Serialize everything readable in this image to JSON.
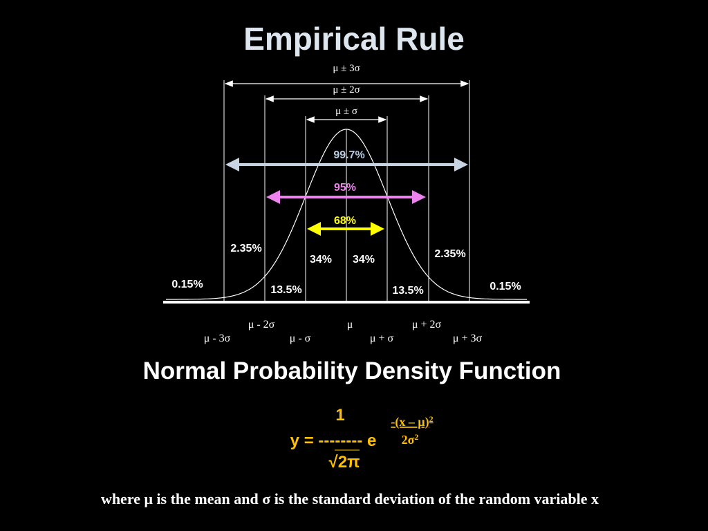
{
  "title": "Empirical Rule",
  "diagram": {
    "brackets": [
      "μ ± 3σ",
      "μ ± 2σ",
      "μ ± σ"
    ],
    "coverage": [
      "99.7%",
      "95%",
      "68%"
    ],
    "areas": [
      "0.15%",
      "2.35%",
      "13.5%",
      "34%",
      "34%",
      "13.5%",
      "2.35%",
      "0.15%"
    ],
    "axis_labels": [
      "μ - 3σ",
      "μ - 2σ",
      "μ - σ",
      "μ",
      "μ + σ",
      "μ + 2σ",
      "μ + 3σ"
    ]
  },
  "subtitle": "Normal Probability Density Function",
  "formula": {
    "numerator": "1",
    "lhs": "y = -------- e",
    "denominator": "√2π",
    "exp_numerator": "-(x – μ)",
    "exp_numerator_power": "2",
    "exp_denominator": "2σ",
    "exp_denominator_power": "2"
  },
  "footer": "where μ is the mean and σ is the standard deviation of the random variable x"
}
